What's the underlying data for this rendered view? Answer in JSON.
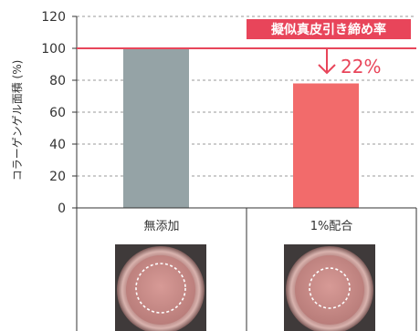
{
  "chart_data": {
    "type": "bar",
    "ylabel": "コラーゲンゲル面積 (%)",
    "ylim": [
      0,
      120
    ],
    "yticks": [
      0,
      20,
      40,
      60,
      80,
      100,
      120
    ],
    "grid": "dashed-horizontal",
    "categories": [
      "無添加",
      "1%配合"
    ],
    "values": [
      100,
      78
    ],
    "bar_colors": [
      "#95a3a6",
      "#f26b6b"
    ],
    "reference_value": 100,
    "reference_color": "#e8455a",
    "annotation": {
      "banner": "擬似真皮引き締め率",
      "reduction": "22%"
    },
    "sample_images": [
      "dish-photo-control",
      "dish-photo-1percent"
    ]
  }
}
